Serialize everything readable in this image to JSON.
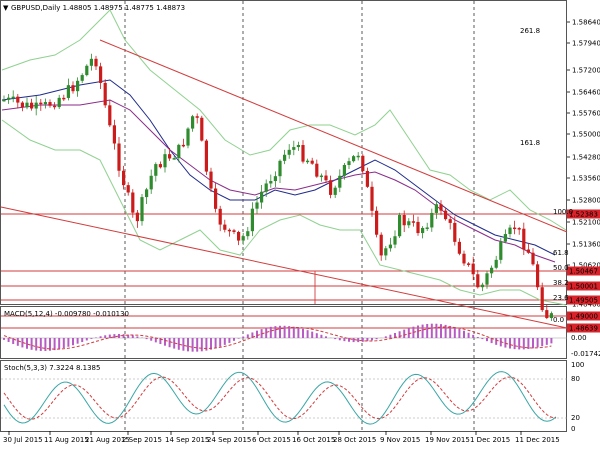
{
  "colors": {
    "bull": "#2e8b2e",
    "bear": "#cc1b1b",
    "ma_blue": "#1f2a8c",
    "ma_purple": "#8a2b8a",
    "bollinger": "#8fd18f",
    "trendline": "#d23c3c",
    "fib": "#c040c0",
    "macd_hist": "#b65ac4",
    "macd_signal": "#d23c3c",
    "stoch_k": "#3aa6a6",
    "stoch_d": "#d23c3c",
    "price_tag_bg": "#d8232a",
    "grid": "#333333"
  },
  "header": {
    "menu_icon": "triangle-down-icon",
    "title": "GBPUSD,Daily  1.48805 1.48975 1.48775 1.48873"
  },
  "price_axis": {
    "ticks": [
      "1.58640",
      "1.57940",
      "1.57200",
      "1.56460",
      "1.55760",
      "1.55000",
      "1.54280",
      "1.53560",
      "1.52800",
      "1.52100",
      "1.51360",
      "1.50620",
      "1.49800",
      "1.49160",
      "1.48460"
    ],
    "price_tags": [
      "1.52383",
      "1.50467",
      "1.50001",
      "1.49505",
      "1.49000",
      "1.48639"
    ]
  },
  "fib_labels": [
    "261.8",
    "161.8",
    "100.0",
    "61.8",
    "50.0",
    "38.2",
    "23.6",
    "0.0"
  ],
  "macd": {
    "title": "MACD(5,12,4) -0.009780 -0.010130",
    "ticks": [
      "0.010285",
      "0.00",
      "-0.017425"
    ]
  },
  "stoch": {
    "title": "Stoch(5,3,3) 7.3224 8.1385",
    "ticks": [
      "100",
      "80",
      "20",
      "0"
    ]
  },
  "time_axis": {
    "labels": [
      "30 Jul 2015",
      "11 Aug 2015",
      "21 Aug 2015",
      "2 Sep 2015",
      "14 Sep 2015",
      "24 Sep 2015",
      "6 Oct 2015",
      "16 Oct 2015",
      "28 Oct 2015",
      "9 Nov 2015",
      "19 Nov 2015",
      "1 Dec 2015",
      "11 Dec 2015"
    ]
  }
}
